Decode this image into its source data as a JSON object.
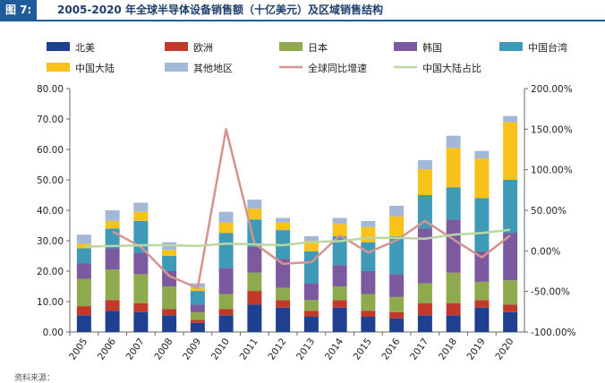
{
  "figure": {
    "tag": "图 7:",
    "title": "2005-2020 年全球半导体设备销售额（十亿美元）及区域销售结构",
    "source": "资料来源："
  },
  "chart_data": {
    "type": "bar",
    "stacked": true,
    "categories": [
      "2005",
      "2006",
      "2007",
      "2008",
      "2009",
      "2010",
      "2011",
      "2012",
      "2013",
      "2014",
      "2015",
      "2016",
      "2017",
      "2018",
      "2019",
      "2020"
    ],
    "y_left": {
      "min": 0,
      "max": 80,
      "ticks": [
        "0.00",
        "10.00",
        "20.00",
        "30.00",
        "40.00",
        "50.00",
        "60.00",
        "70.00",
        "80.00"
      ]
    },
    "y_right": {
      "min": -100,
      "max": 200,
      "ticks": [
        "-100.00%",
        "-50.00%",
        "0.00%",
        "50.00%",
        "100.00%",
        "150.00%",
        "200.00%"
      ]
    },
    "series": [
      {
        "name": "北美",
        "color": "#1f3f8f",
        "values": [
          5.5,
          7.0,
          6.5,
          5.5,
          3.0,
          5.5,
          9.0,
          8.0,
          5.0,
          8.0,
          5.0,
          4.5,
          5.5,
          5.5,
          8.0,
          6.5
        ]
      },
      {
        "name": "欧洲",
        "color": "#c0392b",
        "values": [
          3.0,
          3.5,
          3.0,
          2.0,
          1.0,
          2.0,
          4.5,
          2.5,
          2.0,
          2.5,
          2.0,
          2.0,
          4.0,
          4.0,
          2.5,
          2.5
        ]
      },
      {
        "name": "日本",
        "color": "#8faa4e",
        "values": [
          9.0,
          10.0,
          9.5,
          7.5,
          2.5,
          5.0,
          6.0,
          4.0,
          3.5,
          4.5,
          5.5,
          5.0,
          6.5,
          10.0,
          6.0,
          8.0
        ]
      },
      {
        "name": "韩国",
        "color": "#7b5aa0",
        "values": [
          5.0,
          7.0,
          7.0,
          5.0,
          2.5,
          8.5,
          8.5,
          9.5,
          5.5,
          7.0,
          7.5,
          7.5,
          18.0,
          17.5,
          10.0,
          15.5
        ]
      },
      {
        "name": "中国台湾",
        "color": "#3e9ab6",
        "values": [
          5.0,
          6.5,
          10.5,
          5.0,
          4.5,
          11.5,
          9.0,
          9.5,
          10.5,
          9.5,
          9.5,
          12.5,
          11.0,
          10.5,
          17.5,
          17.5
        ]
      },
      {
        "name": "中国大陆",
        "color": "#f8c21b",
        "values": [
          1.5,
          2.5,
          3.0,
          2.0,
          1.0,
          3.5,
          3.5,
          2.5,
          3.5,
          4.0,
          5.0,
          6.5,
          8.5,
          13.0,
          13.0,
          19.0
        ]
      },
      {
        "name": "其他地区",
        "color": "#a3b7d8",
        "values": [
          3.0,
          3.5,
          3.0,
          2.5,
          1.5,
          3.5,
          3.0,
          1.5,
          1.5,
          2.0,
          2.0,
          3.5,
          3.0,
          4.0,
          2.5,
          2.0
        ]
      }
    ],
    "lines": [
      {
        "name": "全球同比增速",
        "color": "#d4938f",
        "axis": "right",
        "values": [
          null,
          24,
          5,
          -31,
          -46,
          150,
          9,
          -16,
          -14,
          19,
          -2,
          13,
          37,
          14,
          -8,
          19
        ]
      },
      {
        "name": "中国大陆占比",
        "color": "#bcd5a4",
        "axis": "right",
        "values": [
          5,
          6,
          7,
          7,
          6,
          9,
          8,
          7,
          11,
          12,
          16,
          16,
          15,
          20,
          22,
          26
        ]
      }
    ],
    "grid": false,
    "legend_position": "top"
  }
}
